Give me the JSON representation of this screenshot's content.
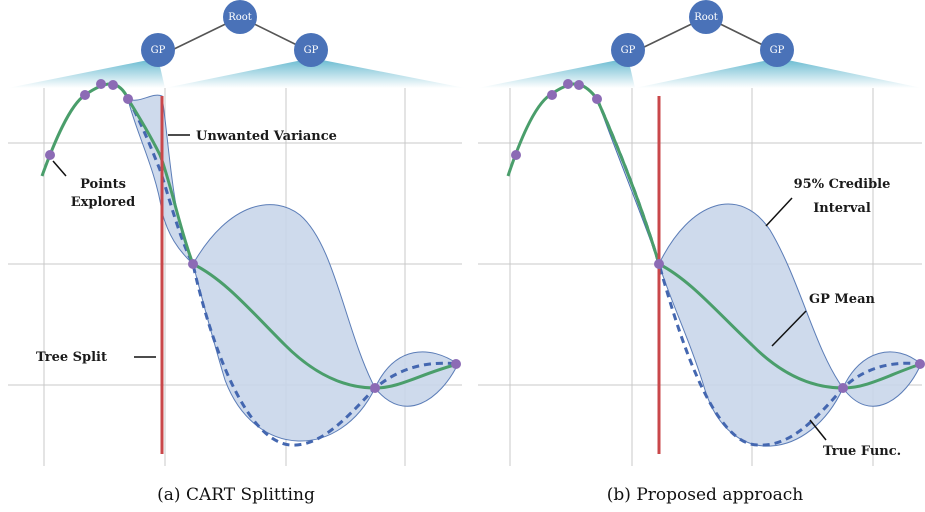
{
  "tree": {
    "root_label": "Root",
    "left_label": "GP",
    "right_label": "GP"
  },
  "panel_a": {
    "caption": "(a) CART Splitting",
    "annotations": {
      "unwanted_variance": "Unwanted Variance",
      "points_explored_1": "Points",
      "points_explored_2": "Explored",
      "tree_split": "Tree Split"
    }
  },
  "panel_b": {
    "caption": "(b) Proposed approach",
    "annotations": {
      "credible_1": "95% Credible",
      "credible_2": "Interval",
      "gp_mean": "GP Mean",
      "true_func": "True Func."
    }
  },
  "colors": {
    "node": "#4a72b8",
    "gp_mean": "#4a9e6b",
    "true_func": "#4467b0",
    "band_fill": "#c9d6ea",
    "band_stroke": "#4a6fb0",
    "split_line": "#c9474a",
    "point": "#8c6bb5",
    "grid": "#c8c8c8",
    "fan": "#5ab4cc"
  }
}
